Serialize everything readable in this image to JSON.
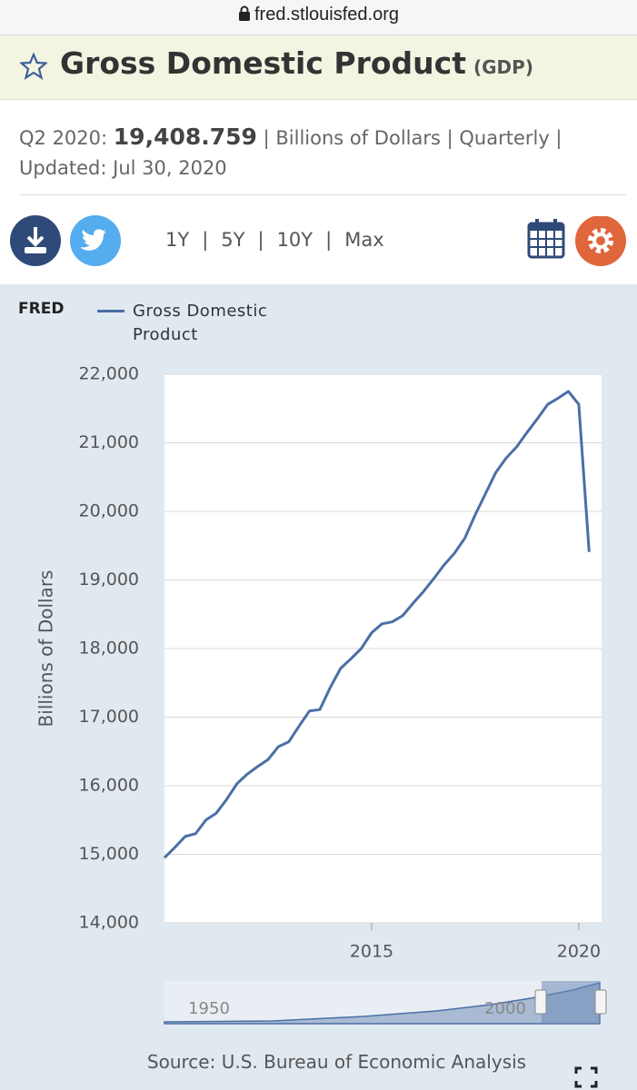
{
  "browser": {
    "url": "fred.stlouisfed.org"
  },
  "header": {
    "title": "Gross Domestic Product",
    "series_id": "(GDP)"
  },
  "summary": {
    "period": "Q2 2020:",
    "value": "19,408.759",
    "units": "| Billions of Dollars | Quarterly |",
    "updated": "Updated: Jul 30, 2020"
  },
  "toolbar": {
    "ranges": [
      "1Y",
      "5Y",
      "10Y",
      "Max"
    ],
    "separator": "|"
  },
  "chart_data": {
    "type": "line",
    "logo": "FRED",
    "y_label": "Billions of Dollars",
    "x": [
      2010,
      2010.25,
      2010.5,
      2010.75,
      2011,
      2011.25,
      2011.5,
      2011.75,
      2012,
      2012.25,
      2012.5,
      2012.75,
      2013,
      2013.25,
      2013.5,
      2013.75,
      2014,
      2014.25,
      2014.5,
      2014.75,
      2015,
      2015.25,
      2015.5,
      2015.75,
      2016,
      2016.25,
      2016.5,
      2016.75,
      2017,
      2017.25,
      2017.5,
      2017.75,
      2018,
      2018.25,
      2018.5,
      2018.75,
      2019,
      2019.25,
      2019.5,
      2019.75,
      2020,
      2020.25
    ],
    "series": [
      {
        "name": "Gross Domestic Product",
        "color": "#4b6fa5",
        "values": [
          14950,
          15100,
          15260,
          15300,
          15500,
          15600,
          15800,
          16030,
          16170,
          16280,
          16380,
          16570,
          16640,
          16870,
          17090,
          17110,
          17430,
          17710,
          17850,
          18000,
          18230,
          18360,
          18390,
          18480,
          18660,
          18830,
          19020,
          19220,
          19390,
          19610,
          19950,
          20260,
          20570,
          20780,
          20940,
          21150,
          21350,
          21560,
          21650,
          21750,
          21561,
          19408.759
        ]
      }
    ],
    "xlim": [
      2010,
      2020.55
    ],
    "xticks": [
      2015,
      2020
    ],
    "ylim": [
      14000,
      22000
    ],
    "yticks": [
      {
        "value": 14000,
        "label": "14,000"
      },
      {
        "value": 15000,
        "label": "15,000"
      },
      {
        "value": 16000,
        "label": "16,000"
      },
      {
        "value": 17000,
        "label": "17,000"
      },
      {
        "value": 18000,
        "label": "18,000"
      },
      {
        "value": 19000,
        "label": "19,000"
      },
      {
        "value": 20000,
        "label": "20,000"
      },
      {
        "value": 21000,
        "label": "21,000"
      },
      {
        "value": 22000,
        "label": "22,000"
      }
    ],
    "grid": true
  },
  "navigator": {
    "labels": [
      "1950",
      "2000"
    ]
  },
  "source": "Source: U.S. Bureau of Economic Analysis"
}
